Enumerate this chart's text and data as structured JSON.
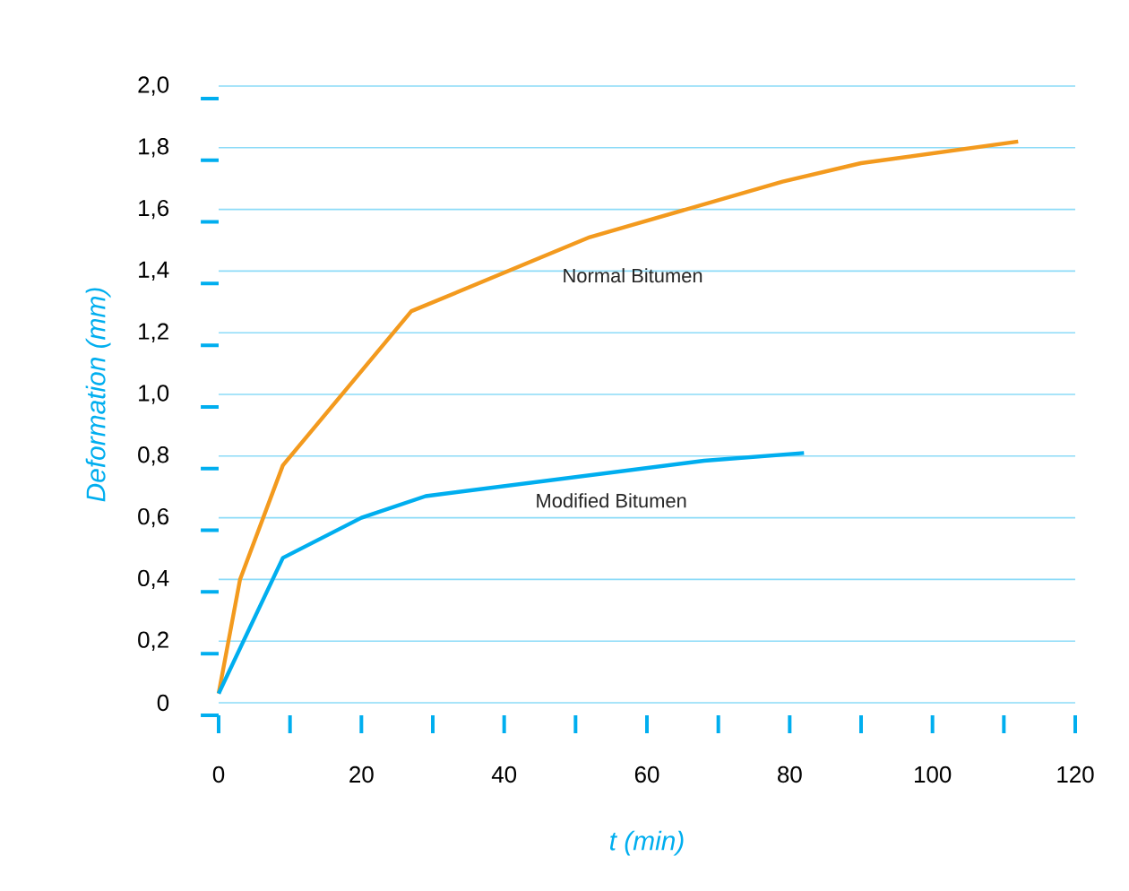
{
  "chart_data": {
    "type": "line",
    "xlabel": "t (min)",
    "ylabel": "Deformation (mm)",
    "xlim": [
      0,
      120
    ],
    "ylim": [
      0,
      2.0
    ],
    "xticks": [
      0,
      {
        "value": 10,
        "label": null
      },
      20,
      {
        "value": 30,
        "label": null
      },
      40,
      {
        "value": 50,
        "label": null
      },
      60,
      {
        "value": 70,
        "label": null
      },
      80,
      {
        "value": 90,
        "label": null
      },
      100,
      {
        "value": 110,
        "label": null
      },
      120
    ],
    "yticks": [
      0,
      {
        "value": 0.2,
        "label": "0,2"
      },
      {
        "value": 0.4,
        "label": "0,4"
      },
      {
        "value": 0.6,
        "label": "0,6"
      },
      {
        "value": 0.8,
        "label": "0,8"
      },
      {
        "value": 1.0,
        "label": "1,0"
      },
      {
        "value": 1.2,
        "label": "1,2"
      },
      {
        "value": 1.4,
        "label": "1,4"
      },
      {
        "value": 1.6,
        "label": "1,6"
      },
      {
        "value": 1.8,
        "label": "1,8"
      },
      {
        "value": 2.0,
        "label": "2,0"
      }
    ],
    "grid": "y",
    "legend": false,
    "marker": "none",
    "line_style": "solid",
    "series": [
      {
        "name": "Normal Bitumen",
        "color": "#f39a1e",
        "x": [
          0,
          3,
          9,
          27,
          52,
          79,
          90,
          112
        ],
        "values": [
          0.03,
          0.4,
          0.77,
          1.27,
          1.51,
          1.69,
          1.75,
          1.82
        ]
      },
      {
        "name": "Modified Bitumen",
        "color": "#00aeef",
        "x": [
          0,
          9,
          20,
          29,
          68,
          82
        ],
        "values": [
          0.03,
          0.47,
          0.6,
          0.67,
          0.785,
          0.81
        ]
      }
    ]
  }
}
